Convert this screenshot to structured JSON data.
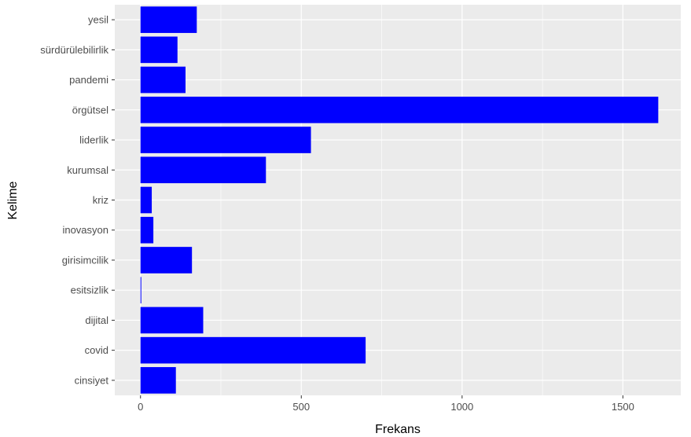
{
  "chart_data": {
    "type": "bar",
    "orientation": "horizontal",
    "xlabel": "Frekans",
    "ylabel": "Kelime",
    "categories": [
      "yesil",
      "sürdürülebilirlik",
      "pandemi",
      "örgütsel",
      "liderlik",
      "kurumsal",
      "kriz",
      "inovasyon",
      "girisimcilik",
      "esitsizlik",
      "dijital",
      "covid",
      "cinsiyet"
    ],
    "values": [
      175,
      115,
      140,
      1610,
      530,
      390,
      35,
      40,
      160,
      2,
      195,
      700,
      110
    ],
    "xlim": [
      -80,
      1680
    ],
    "xticks": [
      0,
      500,
      1000,
      1500
    ],
    "grid": true,
    "legend": "none",
    "colors": {
      "bar": "#0000ff",
      "panel": "#ebebeb",
      "grid_major": "#ffffff",
      "tick": "#333333"
    }
  }
}
